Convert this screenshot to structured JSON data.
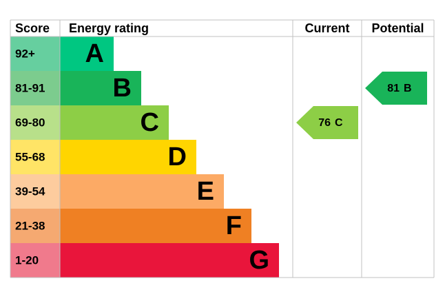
{
  "headers": [
    "Score",
    "Energy rating",
    "Current",
    "Potential"
  ],
  "bands": [
    {
      "score": "92+",
      "letter": "A",
      "color": "#00c781",
      "score_color": "#66cf9f"
    },
    {
      "score": "81-91",
      "letter": "B",
      "color": "#19b459",
      "score_color": "#7ccc8e"
    },
    {
      "score": "69-80",
      "letter": "C",
      "color": "#8dce46",
      "score_color": "#b8e08a"
    },
    {
      "score": "55-68",
      "letter": "D",
      "color": "#ffd500",
      "score_color": "#ffe466"
    },
    {
      "score": "39-54",
      "letter": "E",
      "color": "#fcaa65",
      "score_color": "#fdcc9e"
    },
    {
      "score": "21-38",
      "letter": "F",
      "color": "#ef8023",
      "score_color": "#f5a971"
    },
    {
      "score": "1-20",
      "letter": "G",
      "color": "#e9153b",
      "score_color": "#f07a8c"
    }
  ],
  "current": {
    "score": 76,
    "band": "C"
  },
  "potential": {
    "score": 81,
    "band": "B"
  }
}
